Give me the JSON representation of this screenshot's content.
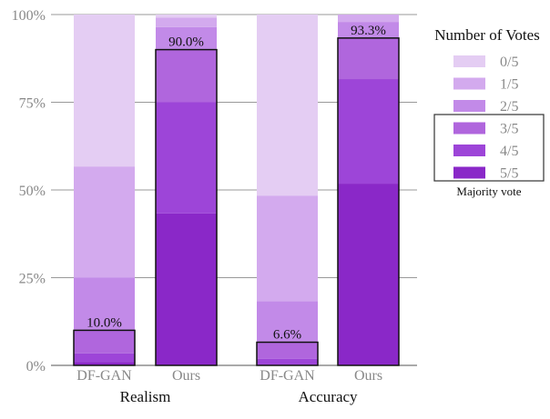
{
  "chart_data": {
    "type": "bar",
    "stacked": true,
    "normalized": true,
    "groups": [
      "Realism",
      "Accuracy"
    ],
    "categories": [
      "DF-GAN",
      "Ours"
    ],
    "ylim": [
      0,
      100
    ],
    "yticks": [
      "0%",
      "25%",
      "50%",
      "75%",
      "100%"
    ],
    "grid": true,
    "legend": {
      "title": "Number of Votes",
      "placement": "right",
      "entries": [
        "0/5",
        "1/5",
        "2/5",
        "3/5",
        "4/5",
        "5/5"
      ],
      "majority_note": "Majority vote"
    },
    "colors": [
      "#e4cdf3",
      "#d3aaee",
      "#c28ae8",
      "#b066dd",
      "#9d45d8",
      "#8a28c8"
    ],
    "bars": [
      {
        "group": "Realism",
        "category": "DF-GAN",
        "values": {
          "0/5": 43.3,
          "1/5": 31.7,
          "2/5": 15.0,
          "3/5": 6.6,
          "4/5": 2.4,
          "5/5": 1.0
        },
        "majority_label": "10.0%",
        "majority_value": 10.0
      },
      {
        "group": "Realism",
        "category": "Ours",
        "values": {
          "0/5": 0.9,
          "1/5": 2.7,
          "2/5": 6.4,
          "3/5": 15.0,
          "4/5": 31.7,
          "5/5": 43.3
        },
        "majority_label": "90.0%",
        "majority_value": 90.0
      },
      {
        "group": "Accuracy",
        "category": "DF-GAN",
        "values": {
          "0/5": 51.6,
          "1/5": 30.1,
          "2/5": 11.7,
          "3/5": 4.7,
          "4/5": 1.9,
          "5/5": 0.0
        },
        "majority_label": "6.6%",
        "majority_value": 6.6
      },
      {
        "group": "Accuracy",
        "category": "Ours",
        "values": {
          "0/5": 0.0,
          "1/5": 2.1,
          "2/5": 4.6,
          "3/5": 11.7,
          "4/5": 29.8,
          "5/5": 51.8
        },
        "majority_label": "93.3%",
        "majority_value": 93.3
      }
    ]
  }
}
